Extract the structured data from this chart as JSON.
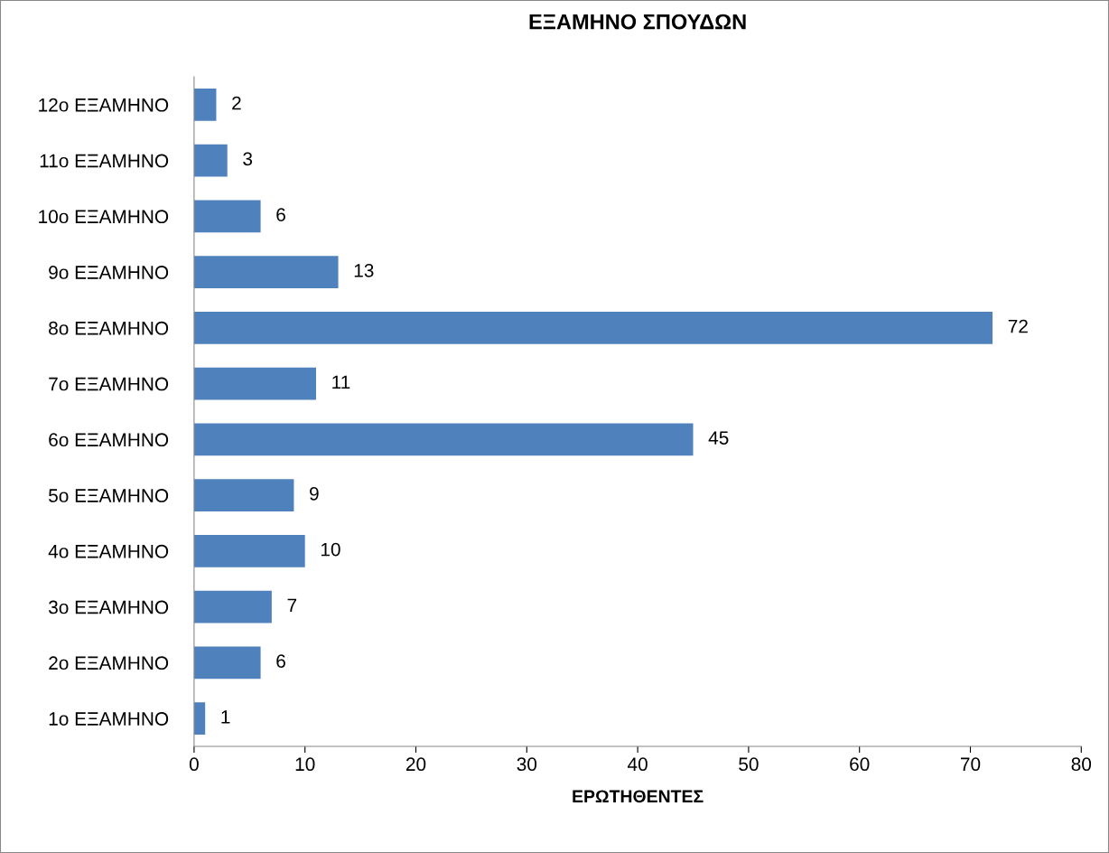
{
  "chart_data": {
    "type": "bar",
    "orientation": "horizontal",
    "title": "ΕΞΑΜΗΝΟ ΣΠΟΥΔΩΝ",
    "xlabel": "ΕΡΩΤΗΘΕΝΤΕΣ",
    "categories": [
      "12ο ΕΞΑΜΗΝΟ",
      "11ο ΕΞΑΜΗΝΟ",
      "10ο ΕΞΑΜΗΝΟ",
      "9ο ΕΞΑΜΗΝΟ",
      "8ο ΕΞΑΜΗΝΟ",
      "7ο ΕΞΑΜΗΝΟ",
      "6ο ΕΞΑΜΗΝΟ",
      "5ο ΕΞΑΜΗΝΟ",
      "4ο ΕΞΑΜΗΝΟ",
      "3ο ΕΞΑΜΗΝΟ",
      "2ο ΕΞΑΜΗΝΟ",
      "1ο ΕΞΑΜΗΝΟ"
    ],
    "values": [
      2,
      3,
      6,
      13,
      72,
      11,
      45,
      9,
      10,
      7,
      6,
      1
    ],
    "color": "#4f81bd",
    "xlim": [
      0,
      80
    ],
    "xticks": [
      0,
      10,
      20,
      30,
      40,
      50,
      60,
      70,
      80
    ],
    "grid": false,
    "data_labels": true
  }
}
